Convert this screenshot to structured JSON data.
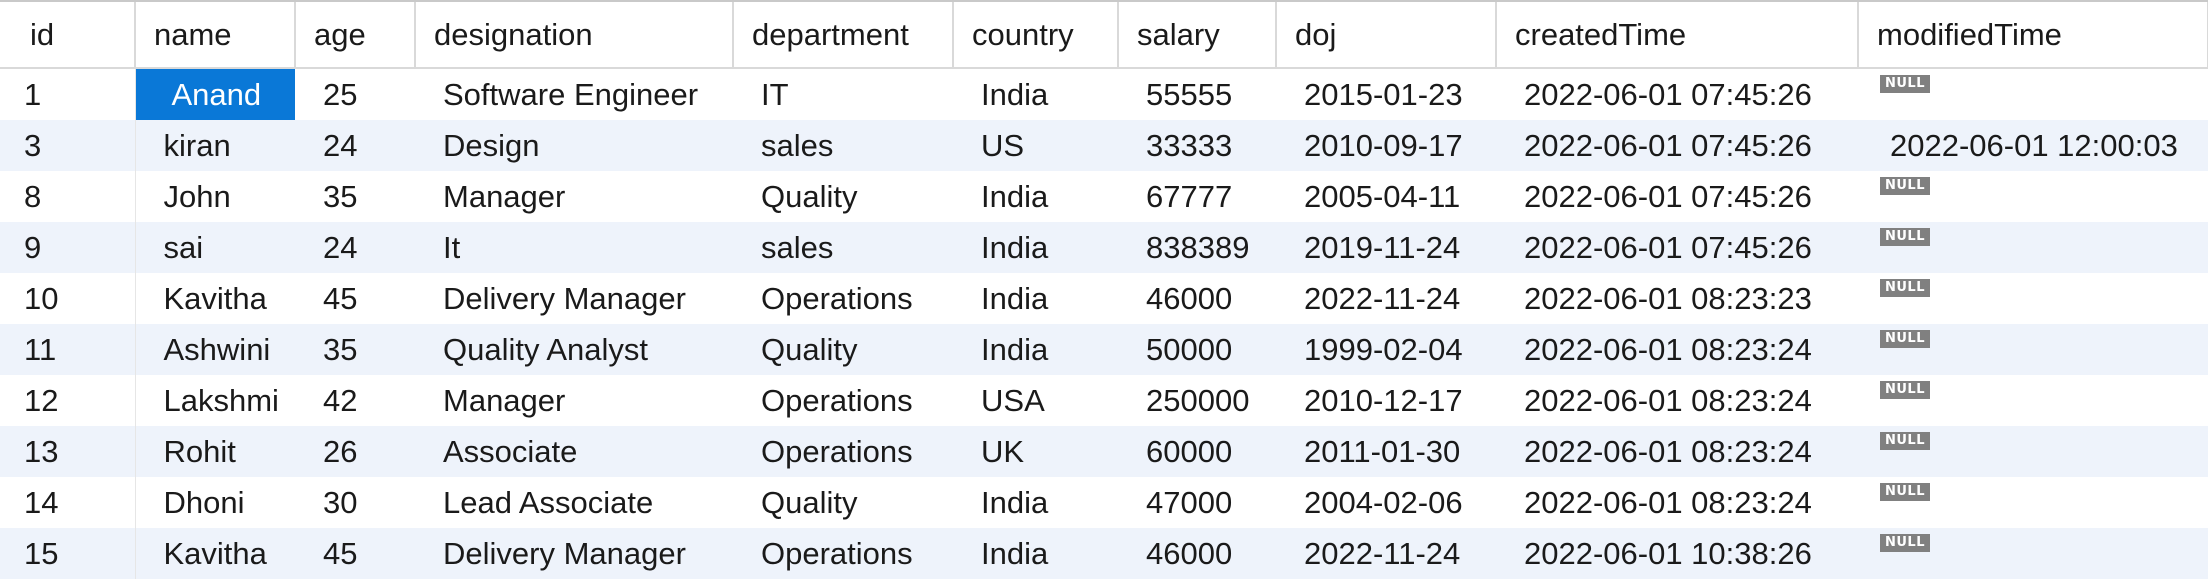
{
  "table": {
    "columns": [
      "id",
      "name",
      "age",
      "designation",
      "department",
      "country",
      "salary",
      "doj",
      "createdTime",
      "modifiedTime"
    ],
    "null_label": "NULL",
    "selected_row": 0,
    "selected_column": "name",
    "rows": [
      {
        "id": "1",
        "name": "Anand",
        "age": "25",
        "designation": "Software Engineer",
        "department": "IT",
        "country": "India",
        "salary": "55555",
        "doj": "2015-01-23",
        "createdTime": "2022-06-01 07:45:26",
        "modifiedTime": null
      },
      {
        "id": "3",
        "name": "kiran",
        "age": "24",
        "designation": "Design",
        "department": "sales",
        "country": "US",
        "salary": "33333",
        "doj": "2010-09-17",
        "createdTime": "2022-06-01 07:45:26",
        "modifiedTime": "2022-06-01 12:00:03"
      },
      {
        "id": "8",
        "name": "John",
        "age": "35",
        "designation": "Manager",
        "department": "Quality",
        "country": "India",
        "salary": "67777",
        "doj": "2005-04-11",
        "createdTime": "2022-06-01 07:45:26",
        "modifiedTime": null
      },
      {
        "id": "9",
        "name": "sai",
        "age": "24",
        "designation": "It",
        "department": "sales",
        "country": "India",
        "salary": "838389",
        "doj": "2019-11-24",
        "createdTime": "2022-06-01 07:45:26",
        "modifiedTime": null
      },
      {
        "id": "10",
        "name": "Kavitha",
        "age": "45",
        "designation": "Delivery Manager",
        "department": "Operations",
        "country": "India",
        "salary": "46000",
        "doj": "2022-11-24",
        "createdTime": "2022-06-01 08:23:23",
        "modifiedTime": null
      },
      {
        "id": "11",
        "name": "Ashwini",
        "age": "35",
        "designation": "Quality Analyst",
        "department": "Quality",
        "country": "India",
        "salary": "50000",
        "doj": "1999-02-04",
        "createdTime": "2022-06-01 08:23:24",
        "modifiedTime": null
      },
      {
        "id": "12",
        "name": "Lakshmi",
        "age": "42",
        "designation": "Manager",
        "department": "Operations",
        "country": "USA",
        "salary": "250000",
        "doj": "2010-12-17",
        "createdTime": "2022-06-01 08:23:24",
        "modifiedTime": null
      },
      {
        "id": "13",
        "name": "Rohit",
        "age": "26",
        "designation": "Associate",
        "department": "Operations",
        "country": "UK",
        "salary": "60000",
        "doj": "2011-01-30",
        "createdTime": "2022-06-01 08:23:24",
        "modifiedTime": null
      },
      {
        "id": "14",
        "name": "Dhoni",
        "age": "30",
        "designation": "Lead Associate",
        "department": "Quality",
        "country": "India",
        "salary": "47000",
        "doj": "2004-02-06",
        "createdTime": "2022-06-01 08:23:24",
        "modifiedTime": null
      },
      {
        "id": "15",
        "name": "Kavitha",
        "age": "45",
        "designation": "Delivery Manager",
        "department": "Operations",
        "country": "India",
        "salary": "46000",
        "doj": "2022-11-24",
        "createdTime": "2022-06-01 10:38:26",
        "modifiedTime": null
      }
    ]
  }
}
